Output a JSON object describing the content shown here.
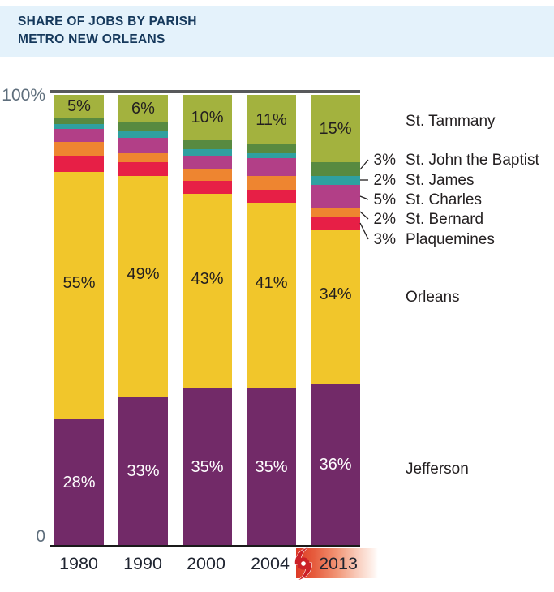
{
  "header": {
    "title_line1": "SHARE OF JOBS BY PARISH",
    "title_line2": "METRO NEW ORLEANS"
  },
  "axis": {
    "y_top": "100%",
    "y_bottom": "0"
  },
  "legend": {
    "items": [
      {
        "pct": "",
        "label": "St. Tammany"
      },
      {
        "pct": "3%",
        "label": "St. John the Baptist"
      },
      {
        "pct": "2%",
        "label": "St. James"
      },
      {
        "pct": "5%",
        "label": "St. Charles"
      },
      {
        "pct": "2%",
        "label": "St. Bernard"
      },
      {
        "pct": "3%",
        "label": "Plaquemines"
      },
      {
        "pct": "",
        "label": "Orleans"
      },
      {
        "pct": "",
        "label": "Jefferson"
      }
    ]
  },
  "annotations": {
    "hurricane_icon": "hurricane-symbol",
    "highlight_year": "2013"
  },
  "colors": {
    "header_bg": "#e4f2fb",
    "header_text": "#16395c",
    "axis_text": "#5e6e7c",
    "top_line": "#58595b",
    "hurricane_red": "#cb2027"
  },
  "chart_data": {
    "type": "bar",
    "stacked": true,
    "unit": "%",
    "title": "Share of jobs by parish, Metro New Orleans",
    "categories": [
      "1980",
      "1990",
      "2000",
      "2004",
      "2013"
    ],
    "ylim": [
      0,
      100
    ],
    "legend_position": "right",
    "series": [
      {
        "name": "Jefferson",
        "color": "#722a68",
        "values": [
          28,
          33,
          35,
          35,
          36
        ],
        "bar_labels": [
          "28%",
          "33%",
          "35%",
          "35%",
          "36%"
        ],
        "label_color": "#ffffff"
      },
      {
        "name": "Orleans",
        "color": "#f1c62b",
        "values": [
          55,
          49,
          43,
          41,
          34
        ],
        "bar_labels": [
          "55%",
          "49%",
          "43%",
          "41%",
          "34%"
        ],
        "label_color": "#231f20"
      },
      {
        "name": "Plaquemines",
        "color": "#e71f46",
        "values": [
          3.5,
          3,
          3,
          3,
          3
        ]
      },
      {
        "name": "St. Bernard",
        "color": "#ee8530",
        "values": [
          3,
          2,
          2.5,
          3,
          2
        ]
      },
      {
        "name": "St. Charles",
        "color": "#b23f87",
        "values": [
          3,
          3.5,
          3,
          4,
          5
        ]
      },
      {
        "name": "St. James",
        "color": "#2fa0a0",
        "values": [
          1,
          1.5,
          1.5,
          1,
          2
        ]
      },
      {
        "name": "St. John the Baptist",
        "color": "#588a40",
        "values": [
          1.5,
          2,
          2,
          2,
          3
        ]
      },
      {
        "name": "St. Tammany",
        "color": "#a3b23e",
        "values": [
          5,
          6,
          10,
          11,
          15
        ],
        "bar_labels": [
          "5%",
          "6%",
          "10%",
          "11%",
          "15%"
        ],
        "label_color": "#231f20"
      }
    ]
  }
}
